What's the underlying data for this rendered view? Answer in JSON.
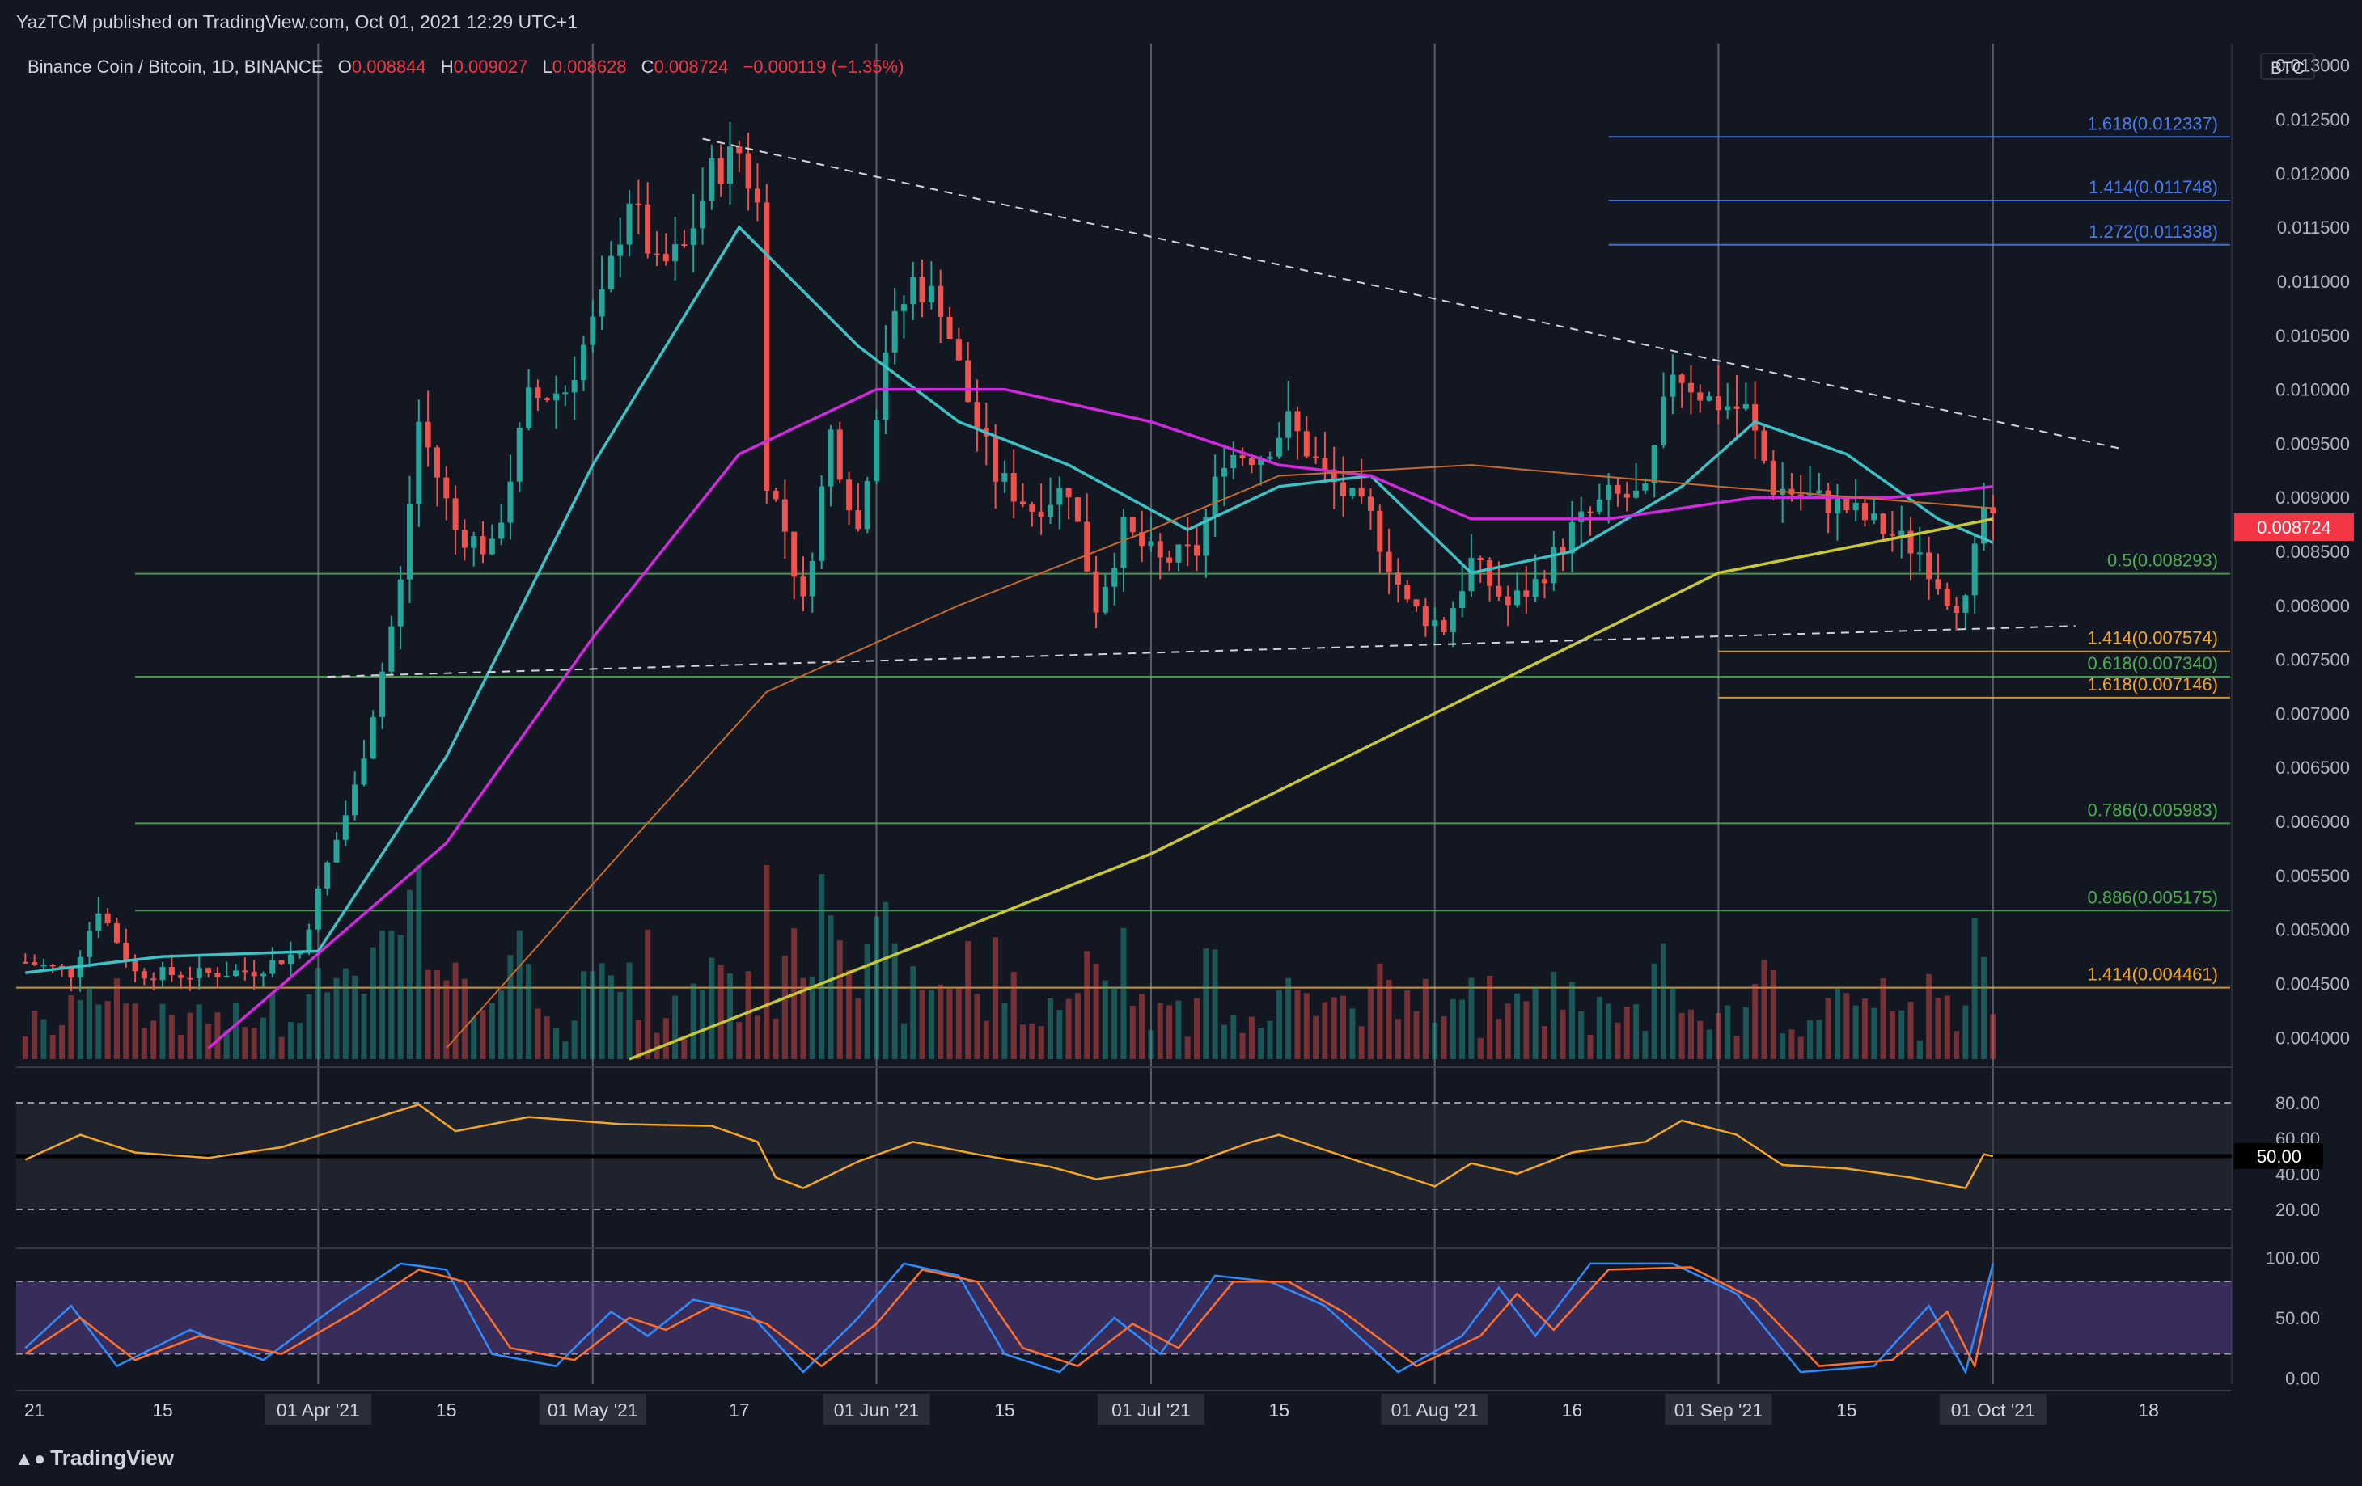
{
  "header": {
    "published": "YazTCM published on TradingView.com, Oct 01, 2021 12:29 UTC+1"
  },
  "symbol": {
    "name": "Binance Coin / Bitcoin, 1D, BINANCE",
    "open_label": "O",
    "open": "0.008844",
    "high_label": "H",
    "high": "0.009027",
    "low_label": "L",
    "low": "0.008628",
    "close_label": "C",
    "close": "0.008724",
    "change": "−0.000119 (−1.35%)"
  },
  "brand": {
    "logo_text": "TradingView",
    "logo_icon": "tradingview-logo-icon"
  },
  "colors": {
    "bg": "#131722",
    "up": "#26a69a",
    "down": "#ef5350",
    "grid": "#2a2e39",
    "ma_teal": "#3cc1c4",
    "ma_magenta": "#d02adc",
    "ma_orange": "#c76a2b",
    "ma_yellow": "#c9c732",
    "fib_green": "#4caf50",
    "fib_orange": "#f5a623",
    "fib_blue": "#4a7df0",
    "rsi": "#f5a623",
    "stoch_k": "#2f8cff",
    "stoch_d": "#ff6f2c"
  },
  "chart_data": {
    "type": "candlestick",
    "currency": "BTC",
    "last_price": "0.008724",
    "y_axis_ticks": [
      "0.013000",
      "0.012500",
      "0.012000",
      "0.011500",
      "0.011000",
      "0.010500",
      "0.010000",
      "0.009500",
      "0.009000",
      "0.008500",
      "0.008000",
      "0.007500",
      "0.007000",
      "0.006500",
      "0.006000",
      "0.005500",
      "0.005000",
      "0.004500",
      "0.004000"
    ],
    "ylim": [
      0.0038,
      0.0132
    ],
    "x_axis_labels": [
      {
        "label": "21",
        "date": "2021-03-01"
      },
      {
        "label": "15",
        "date": "2021-03-15"
      },
      {
        "label": "01 Apr '21",
        "date": "2021-04-01",
        "boxed": true
      },
      {
        "label": "15",
        "date": "2021-04-15"
      },
      {
        "label": "01 May '21",
        "date": "2021-05-01",
        "boxed": true
      },
      {
        "label": "17",
        "date": "2021-05-17"
      },
      {
        "label": "01 Jun '21",
        "date": "2021-06-01",
        "boxed": true
      },
      {
        "label": "15",
        "date": "2021-06-15"
      },
      {
        "label": "01 Jul '21",
        "date": "2021-07-01",
        "boxed": true
      },
      {
        "label": "15",
        "date": "2021-07-15"
      },
      {
        "label": "01 Aug '21",
        "date": "2021-08-01",
        "boxed": true
      },
      {
        "label": "16",
        "date": "2021-08-16"
      },
      {
        "label": "01 Sep '21",
        "date": "2021-09-01",
        "boxed": true
      },
      {
        "label": "15",
        "date": "2021-09-15"
      },
      {
        "label": "01 Oct '21",
        "date": "2021-10-01",
        "boxed": true
      },
      {
        "label": "18",
        "date": "2021-10-18"
      }
    ],
    "x_range": [
      "2021-02-27",
      "2021-10-27"
    ],
    "vertical_markers": [
      "2021-04-01",
      "2021-05-01",
      "2021-06-01",
      "2021-07-01",
      "2021-08-01",
      "2021-09-01",
      "2021-10-01"
    ],
    "close_path": [
      [
        "2021-02-28",
        0.0047
      ],
      [
        "2021-03-05",
        0.0046
      ],
      [
        "2021-03-08",
        0.0052
      ],
      [
        "2021-03-12",
        0.0046
      ],
      [
        "2021-03-18",
        0.00458
      ],
      [
        "2021-03-25",
        0.00462
      ],
      [
        "2021-03-30",
        0.0048
      ],
      [
        "2021-04-02",
        0.0056
      ],
      [
        "2021-04-05",
        0.0063
      ],
      [
        "2021-04-08",
        0.0074
      ],
      [
        "2021-04-10",
        0.0082
      ],
      [
        "2021-04-12",
        0.0097
      ],
      [
        "2021-04-16",
        0.0087
      ],
      [
        "2021-04-20",
        0.0085
      ],
      [
        "2021-04-24",
        0.0099
      ],
      [
        "2021-04-28",
        0.01
      ],
      [
        "2021-05-02",
        0.0108
      ],
      [
        "2021-05-05",
        0.0118
      ],
      [
        "2021-05-08",
        0.0111
      ],
      [
        "2021-05-11",
        0.0113
      ],
      [
        "2021-05-14",
        0.012
      ],
      [
        "2021-05-17",
        0.0122
      ],
      [
        "2021-05-19",
        0.0117
      ],
      [
        "2021-05-20",
        0.0092
      ],
      [
        "2021-05-22",
        0.0087
      ],
      [
        "2021-05-24",
        0.008
      ],
      [
        "2021-05-27",
        0.0096
      ],
      [
        "2021-05-30",
        0.0087
      ],
      [
        "2021-06-02",
        0.0104
      ],
      [
        "2021-06-05",
        0.011
      ],
      [
        "2021-06-08",
        0.0108
      ],
      [
        "2021-06-11",
        0.0099
      ],
      [
        "2021-06-14",
        0.0092
      ],
      [
        "2021-06-18",
        0.0089
      ],
      [
        "2021-06-22",
        0.0091
      ],
      [
        "2021-06-25",
        0.008
      ],
      [
        "2021-06-28",
        0.0087
      ],
      [
        "2021-07-02",
        0.0084
      ],
      [
        "2021-07-06",
        0.0085
      ],
      [
        "2021-07-09",
        0.0094
      ],
      [
        "2021-07-13",
        0.0094
      ],
      [
        "2021-07-16",
        0.0097
      ],
      [
        "2021-07-20",
        0.0092
      ],
      [
        "2021-07-25",
        0.0088
      ],
      [
        "2021-07-29",
        0.008
      ],
      [
        "2021-08-02",
        0.0078
      ],
      [
        "2021-08-05",
        0.0084
      ],
      [
        "2021-08-09",
        0.008
      ],
      [
        "2021-08-12",
        0.0082
      ],
      [
        "2021-08-16",
        0.0087
      ],
      [
        "2021-08-20",
        0.009
      ],
      [
        "2021-08-24",
        0.009
      ],
      [
        "2021-08-27",
        0.0102
      ],
      [
        "2021-08-31",
        0.0099
      ],
      [
        "2021-09-04",
        0.0098
      ],
      [
        "2021-09-07",
        0.0091
      ],
      [
        "2021-09-11",
        0.009
      ],
      [
        "2021-09-15",
        0.0089
      ],
      [
        "2021-09-19",
        0.0087
      ],
      [
        "2021-09-23",
        0.0085
      ],
      [
        "2021-09-26",
        0.0081
      ],
      [
        "2021-09-28",
        0.008
      ],
      [
        "2021-09-30",
        0.0089
      ],
      [
        "2021-10-01",
        0.008724
      ]
    ],
    "moving_averages": [
      {
        "color_key": "ma_teal",
        "points": [
          [
            "2021-02-28",
            0.0046
          ],
          [
            "2021-03-15",
            0.00475
          ],
          [
            "2021-04-01",
            0.0048
          ],
          [
            "2021-04-15",
            0.0066
          ],
          [
            "2021-05-01",
            0.0093
          ],
          [
            "2021-05-17",
            0.0115
          ],
          [
            "2021-05-30",
            0.0104
          ],
          [
            "2021-06-10",
            0.0097
          ],
          [
            "2021-06-22",
            0.0093
          ],
          [
            "2021-07-05",
            0.0087
          ],
          [
            "2021-07-15",
            0.0091
          ],
          [
            "2021-07-25",
            0.0092
          ],
          [
            "2021-08-05",
            0.0083
          ],
          [
            "2021-08-16",
            0.0085
          ],
          [
            "2021-08-28",
            0.0091
          ],
          [
            "2021-09-05",
            0.0097
          ],
          [
            "2021-09-15",
            0.0094
          ],
          [
            "2021-09-25",
            0.0088
          ],
          [
            "2021-10-01",
            0.00858
          ]
        ]
      },
      {
        "color_key": "ma_magenta",
        "points": [
          [
            "2021-03-20",
            0.0039
          ],
          [
            "2021-04-15",
            0.0058
          ],
          [
            "2021-05-01",
            0.0077
          ],
          [
            "2021-05-17",
            0.0094
          ],
          [
            "2021-06-01",
            0.01
          ],
          [
            "2021-06-15",
            0.01
          ],
          [
            "2021-07-01",
            0.0097
          ],
          [
            "2021-07-15",
            0.0093
          ],
          [
            "2021-07-25",
            0.0092
          ],
          [
            "2021-08-05",
            0.0088
          ],
          [
            "2021-08-20",
            0.0088
          ],
          [
            "2021-09-05",
            0.009
          ],
          [
            "2021-09-20",
            0.009
          ],
          [
            "2021-10-01",
            0.0091
          ]
        ]
      },
      {
        "color_key": "ma_orange",
        "points": [
          [
            "2021-04-15",
            0.0039
          ],
          [
            "2021-05-05",
            0.0058
          ],
          [
            "2021-05-20",
            0.0072
          ],
          [
            "2021-06-10",
            0.008
          ],
          [
            "2021-07-01",
            0.0087
          ],
          [
            "2021-07-15",
            0.0092
          ],
          [
            "2021-08-05",
            0.0093
          ],
          [
            "2021-09-01",
            0.0091
          ],
          [
            "2021-10-01",
            0.0089
          ]
        ]
      },
      {
        "color_key": "ma_yellow",
        "points": [
          [
            "2021-05-05",
            0.0038
          ],
          [
            "2021-06-01",
            0.0047
          ],
          [
            "2021-07-01",
            0.0057
          ],
          [
            "2021-08-01",
            0.007
          ],
          [
            "2021-09-01",
            0.0083
          ],
          [
            "2021-10-01",
            0.0088
          ]
        ]
      }
    ],
    "trendlines": [
      {
        "from": [
          "2021-05-13",
          0.01232
        ],
        "to": [
          "2021-10-15",
          0.00945
        ],
        "style": "dashed"
      },
      {
        "from": [
          "2021-04-02",
          0.00734
        ],
        "to": [
          "2021-10-10",
          0.00781
        ],
        "style": "dashed"
      }
    ],
    "horizontal_levels": [
      {
        "label": "1.618(0.012337)",
        "value": 0.012337,
        "color_key": "fib_blue",
        "from": "2021-08-20"
      },
      {
        "label": "1.414(0.011748)",
        "value": 0.011748,
        "color_key": "fib_blue",
        "from": "2021-08-20"
      },
      {
        "label": "1.272(0.011338)",
        "value": 0.011338,
        "color_key": "fib_blue",
        "from": "2021-08-20"
      },
      {
        "label": "0.5(0.008293)",
        "value": 0.008293,
        "color_key": "fib_green",
        "from": "2021-03-12"
      },
      {
        "label": "1.414(0.007574)",
        "value": 0.007574,
        "color_key": "fib_orange",
        "from": "2021-09-01"
      },
      {
        "label": "0.618(0.007340)",
        "value": 0.00734,
        "color_key": "fib_green",
        "from": "2021-03-12"
      },
      {
        "label": "1.618(0.007146)",
        "value": 0.007146,
        "color_key": "fib_orange",
        "from": "2021-09-01"
      },
      {
        "label": "0.786(0.005983)",
        "value": 0.005983,
        "color_key": "fib_green",
        "from": "2021-03-12"
      },
      {
        "label": "0.886(0.005175)",
        "value": 0.005175,
        "color_key": "fib_green",
        "from": "2021-03-12"
      },
      {
        "label": "1.414(0.004461)",
        "value": 0.004461,
        "color_key": "fib_orange",
        "from": "2021-02-27"
      }
    ],
    "rsi": {
      "ticks": [
        "80.00",
        "60.00",
        "40.00",
        "20.00"
      ],
      "current": "50.00",
      "points": [
        [
          "2021-02-28",
          48
        ],
        [
          "2021-03-06",
          62
        ],
        [
          "2021-03-12",
          52
        ],
        [
          "2021-03-20",
          49
        ],
        [
          "2021-03-28",
          55
        ],
        [
          "2021-04-05",
          68
        ],
        [
          "2021-04-12",
          79
        ],
        [
          "2021-04-16",
          64
        ],
        [
          "2021-04-24",
          72
        ],
        [
          "2021-05-04",
          68
        ],
        [
          "2021-05-14",
          67
        ],
        [
          "2021-05-19",
          58
        ],
        [
          "2021-05-21",
          38
        ],
        [
          "2021-05-24",
          32
        ],
        [
          "2021-05-30",
          47
        ],
        [
          "2021-06-05",
          58
        ],
        [
          "2021-06-12",
          51
        ],
        [
          "2021-06-20",
          44
        ],
        [
          "2021-06-25",
          37
        ],
        [
          "2021-07-05",
          45
        ],
        [
          "2021-07-12",
          58
        ],
        [
          "2021-07-15",
          62
        ],
        [
          "2021-07-22",
          50
        ],
        [
          "2021-08-01",
          33
        ],
        [
          "2021-08-05",
          46
        ],
        [
          "2021-08-10",
          40
        ],
        [
          "2021-08-16",
          52
        ],
        [
          "2021-08-24",
          58
        ],
        [
          "2021-08-28",
          70
        ],
        [
          "2021-09-03",
          62
        ],
        [
          "2021-09-08",
          45
        ],
        [
          "2021-09-15",
          43
        ],
        [
          "2021-09-22",
          38
        ],
        [
          "2021-09-28",
          32
        ],
        [
          "2021-09-30",
          51
        ],
        [
          "2021-10-01",
          50
        ]
      ]
    },
    "stoch_rsi": {
      "ticks": [
        "100.00",
        "50.00",
        "0.00"
      ],
      "k": [
        [
          "2021-02-28",
          25
        ],
        [
          "2021-03-05",
          60
        ],
        [
          "2021-03-10",
          10
        ],
        [
          "2021-03-18",
          40
        ],
        [
          "2021-03-26",
          15
        ],
        [
          "2021-04-03",
          60
        ],
        [
          "2021-04-10",
          95
        ],
        [
          "2021-04-15",
          90
        ],
        [
          "2021-04-20",
          20
        ],
        [
          "2021-04-27",
          10
        ],
        [
          "2021-05-03",
          55
        ],
        [
          "2021-05-07",
          35
        ],
        [
          "2021-05-12",
          65
        ],
        [
          "2021-05-18",
          55
        ],
        [
          "2021-05-24",
          5
        ],
        [
          "2021-05-30",
          50
        ],
        [
          "2021-06-04",
          95
        ],
        [
          "2021-06-10",
          85
        ],
        [
          "2021-06-15",
          20
        ],
        [
          "2021-06-21",
          5
        ],
        [
          "2021-06-27",
          50
        ],
        [
          "2021-07-02",
          20
        ],
        [
          "2021-07-08",
          85
        ],
        [
          "2021-07-14",
          80
        ],
        [
          "2021-07-20",
          60
        ],
        [
          "2021-07-28",
          5
        ],
        [
          "2021-08-04",
          35
        ],
        [
          "2021-08-08",
          75
        ],
        [
          "2021-08-12",
          35
        ],
        [
          "2021-08-18",
          95
        ],
        [
          "2021-08-27",
          95
        ],
        [
          "2021-09-03",
          70
        ],
        [
          "2021-09-10",
          5
        ],
        [
          "2021-09-18",
          10
        ],
        [
          "2021-09-24",
          60
        ],
        [
          "2021-09-28",
          5
        ],
        [
          "2021-10-01",
          95
        ]
      ],
      "d": [
        [
          "2021-02-28",
          20
        ],
        [
          "2021-03-06",
          50
        ],
        [
          "2021-03-12",
          15
        ],
        [
          "2021-03-19",
          35
        ],
        [
          "2021-03-28",
          20
        ],
        [
          "2021-04-05",
          55
        ],
        [
          "2021-04-12",
          90
        ],
        [
          "2021-04-17",
          80
        ],
        [
          "2021-04-22",
          25
        ],
        [
          "2021-04-29",
          15
        ],
        [
          "2021-05-05",
          50
        ],
        [
          "2021-05-09",
          40
        ],
        [
          "2021-05-14",
          60
        ],
        [
          "2021-05-20",
          45
        ],
        [
          "2021-05-26",
          10
        ],
        [
          "2021-06-01",
          45
        ],
        [
          "2021-06-06",
          90
        ],
        [
          "2021-06-12",
          80
        ],
        [
          "2021-06-17",
          25
        ],
        [
          "2021-06-23",
          10
        ],
        [
          "2021-06-29",
          45
        ],
        [
          "2021-07-04",
          25
        ],
        [
          "2021-07-10",
          80
        ],
        [
          "2021-07-16",
          80
        ],
        [
          "2021-07-22",
          55
        ],
        [
          "2021-07-30",
          10
        ],
        [
          "2021-08-06",
          35
        ],
        [
          "2021-08-10",
          70
        ],
        [
          "2021-08-14",
          40
        ],
        [
          "2021-08-20",
          90
        ],
        [
          "2021-08-29",
          92
        ],
        [
          "2021-09-05",
          65
        ],
        [
          "2021-09-12",
          10
        ],
        [
          "2021-09-20",
          15
        ],
        [
          "2021-09-26",
          55
        ],
        [
          "2021-09-29",
          10
        ],
        [
          "2021-10-01",
          80
        ]
      ]
    }
  }
}
